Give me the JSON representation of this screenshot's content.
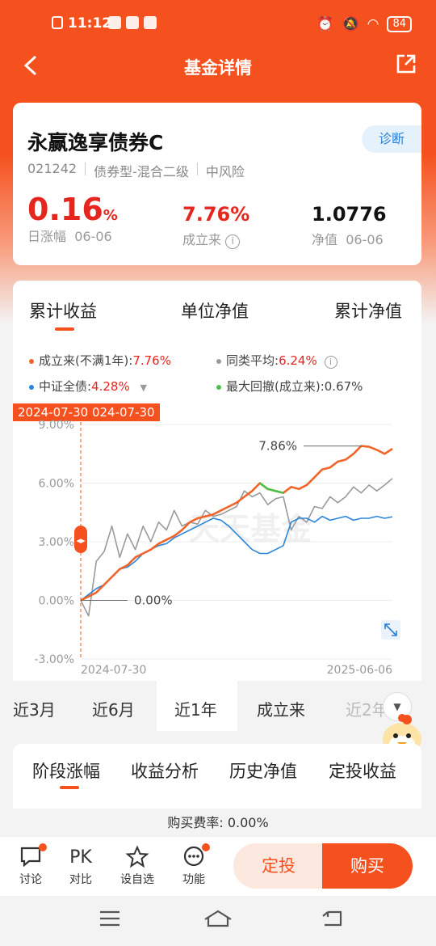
{
  "status": {
    "time": "11:12",
    "battery": "84"
  },
  "nav": {
    "title": "基金详情"
  },
  "fund": {
    "name": "永赢逸享债券C",
    "diagnose": "诊断",
    "code": "021242",
    "type": "债券型-混合二级",
    "risk": "中风险",
    "daily_change": "0.16",
    "daily_change_unit": "%",
    "daily_label": "日涨幅",
    "daily_date": "06-06",
    "since_inception": "7.76%",
    "since_label": "成立来",
    "nav_value": "1.0776",
    "nav_label": "净值",
    "nav_date": "06-06"
  },
  "chart_tabs": [
    "累计收益",
    "单位净值",
    "累计净值"
  ],
  "legend": {
    "fund_label": "成立来(不满1年):",
    "fund_value": "7.76%",
    "peer_label": "同类平均:",
    "peer_value": "6.24%",
    "bench_label": "中证全债:",
    "bench_value": "4.28%",
    "dd_label": "最大回撤(成立来):",
    "dd_value": "0.67%"
  },
  "date_tag": "2024-07-30 024-07-30",
  "chart_data": {
    "type": "line",
    "x_start": "2024-07-30",
    "x_end": "2025-06-06",
    "ylim": [
      -3,
      9
    ],
    "yticks": [
      "9.00%",
      "6.00%",
      "3.00%",
      "0.00%",
      "-3.00%"
    ],
    "annotations": [
      "7.86%",
      "0.00%"
    ],
    "watermark": "天天基金",
    "series": [
      {
        "color": "#f0642a",
        "values": [
          0.0,
          0.2,
          0.4,
          0.8,
          1.2,
          1.6,
          1.8,
          2.2,
          2.4,
          2.6,
          2.9,
          3.1,
          3.3,
          3.6,
          4.0,
          4.2,
          4.3,
          4.4,
          4.6,
          4.8,
          5.0,
          5.3,
          5.6,
          6.0,
          5.7,
          5.6,
          5.5,
          5.8,
          5.7,
          5.9,
          6.3,
          6.7,
          6.8,
          7.1,
          7.2,
          7.5,
          7.9,
          7.86,
          7.7,
          7.5,
          7.76
        ]
      },
      {
        "color": "#9a9a9a",
        "values": [
          0.0,
          -0.8,
          2.0,
          2.5,
          3.8,
          2.2,
          3.4,
          2.6,
          3.8,
          3.0,
          4.0,
          3.6,
          4.6,
          3.8,
          4.0,
          3.9,
          4.6,
          4.3,
          4.4,
          4.6,
          4.8,
          5.6,
          5.3,
          5.5,
          4.9,
          5.2,
          5.3,
          3.6,
          4.3,
          4.0,
          4.8,
          4.7,
          5.3,
          5.0,
          5.3,
          5.8,
          5.5,
          5.9,
          5.6,
          5.9,
          6.24
        ]
      },
      {
        "color": "#2b86d9",
        "values": [
          0.0,
          0.3,
          0.6,
          0.8,
          1.2,
          1.6,
          1.7,
          2.0,
          2.4,
          2.6,
          2.8,
          2.9,
          3.2,
          3.4,
          3.6,
          3.8,
          4.0,
          4.2,
          4.1,
          3.8,
          3.4,
          3.0,
          2.6,
          2.4,
          2.4,
          2.6,
          2.8,
          4.0,
          4.2,
          4.2,
          4.0,
          4.3,
          4.1,
          4.2,
          4.3,
          4.1,
          4.2,
          4.2,
          4.3,
          4.2,
          4.28
        ]
      }
    ]
  },
  "periods": [
    "近3月",
    "近6月",
    "近1年",
    "成立来",
    "近2年"
  ],
  "section_tabs": [
    "阶段涨幅",
    "收益分析",
    "历史净值",
    "定投收益"
  ],
  "fee": "购买费率: 0.00%",
  "bottom": {
    "discuss": "讨论",
    "pk_icon": "PK",
    "compare": "对比",
    "watch": "设自选",
    "func": "功能",
    "dingtou": "定投",
    "buy": "购买"
  }
}
